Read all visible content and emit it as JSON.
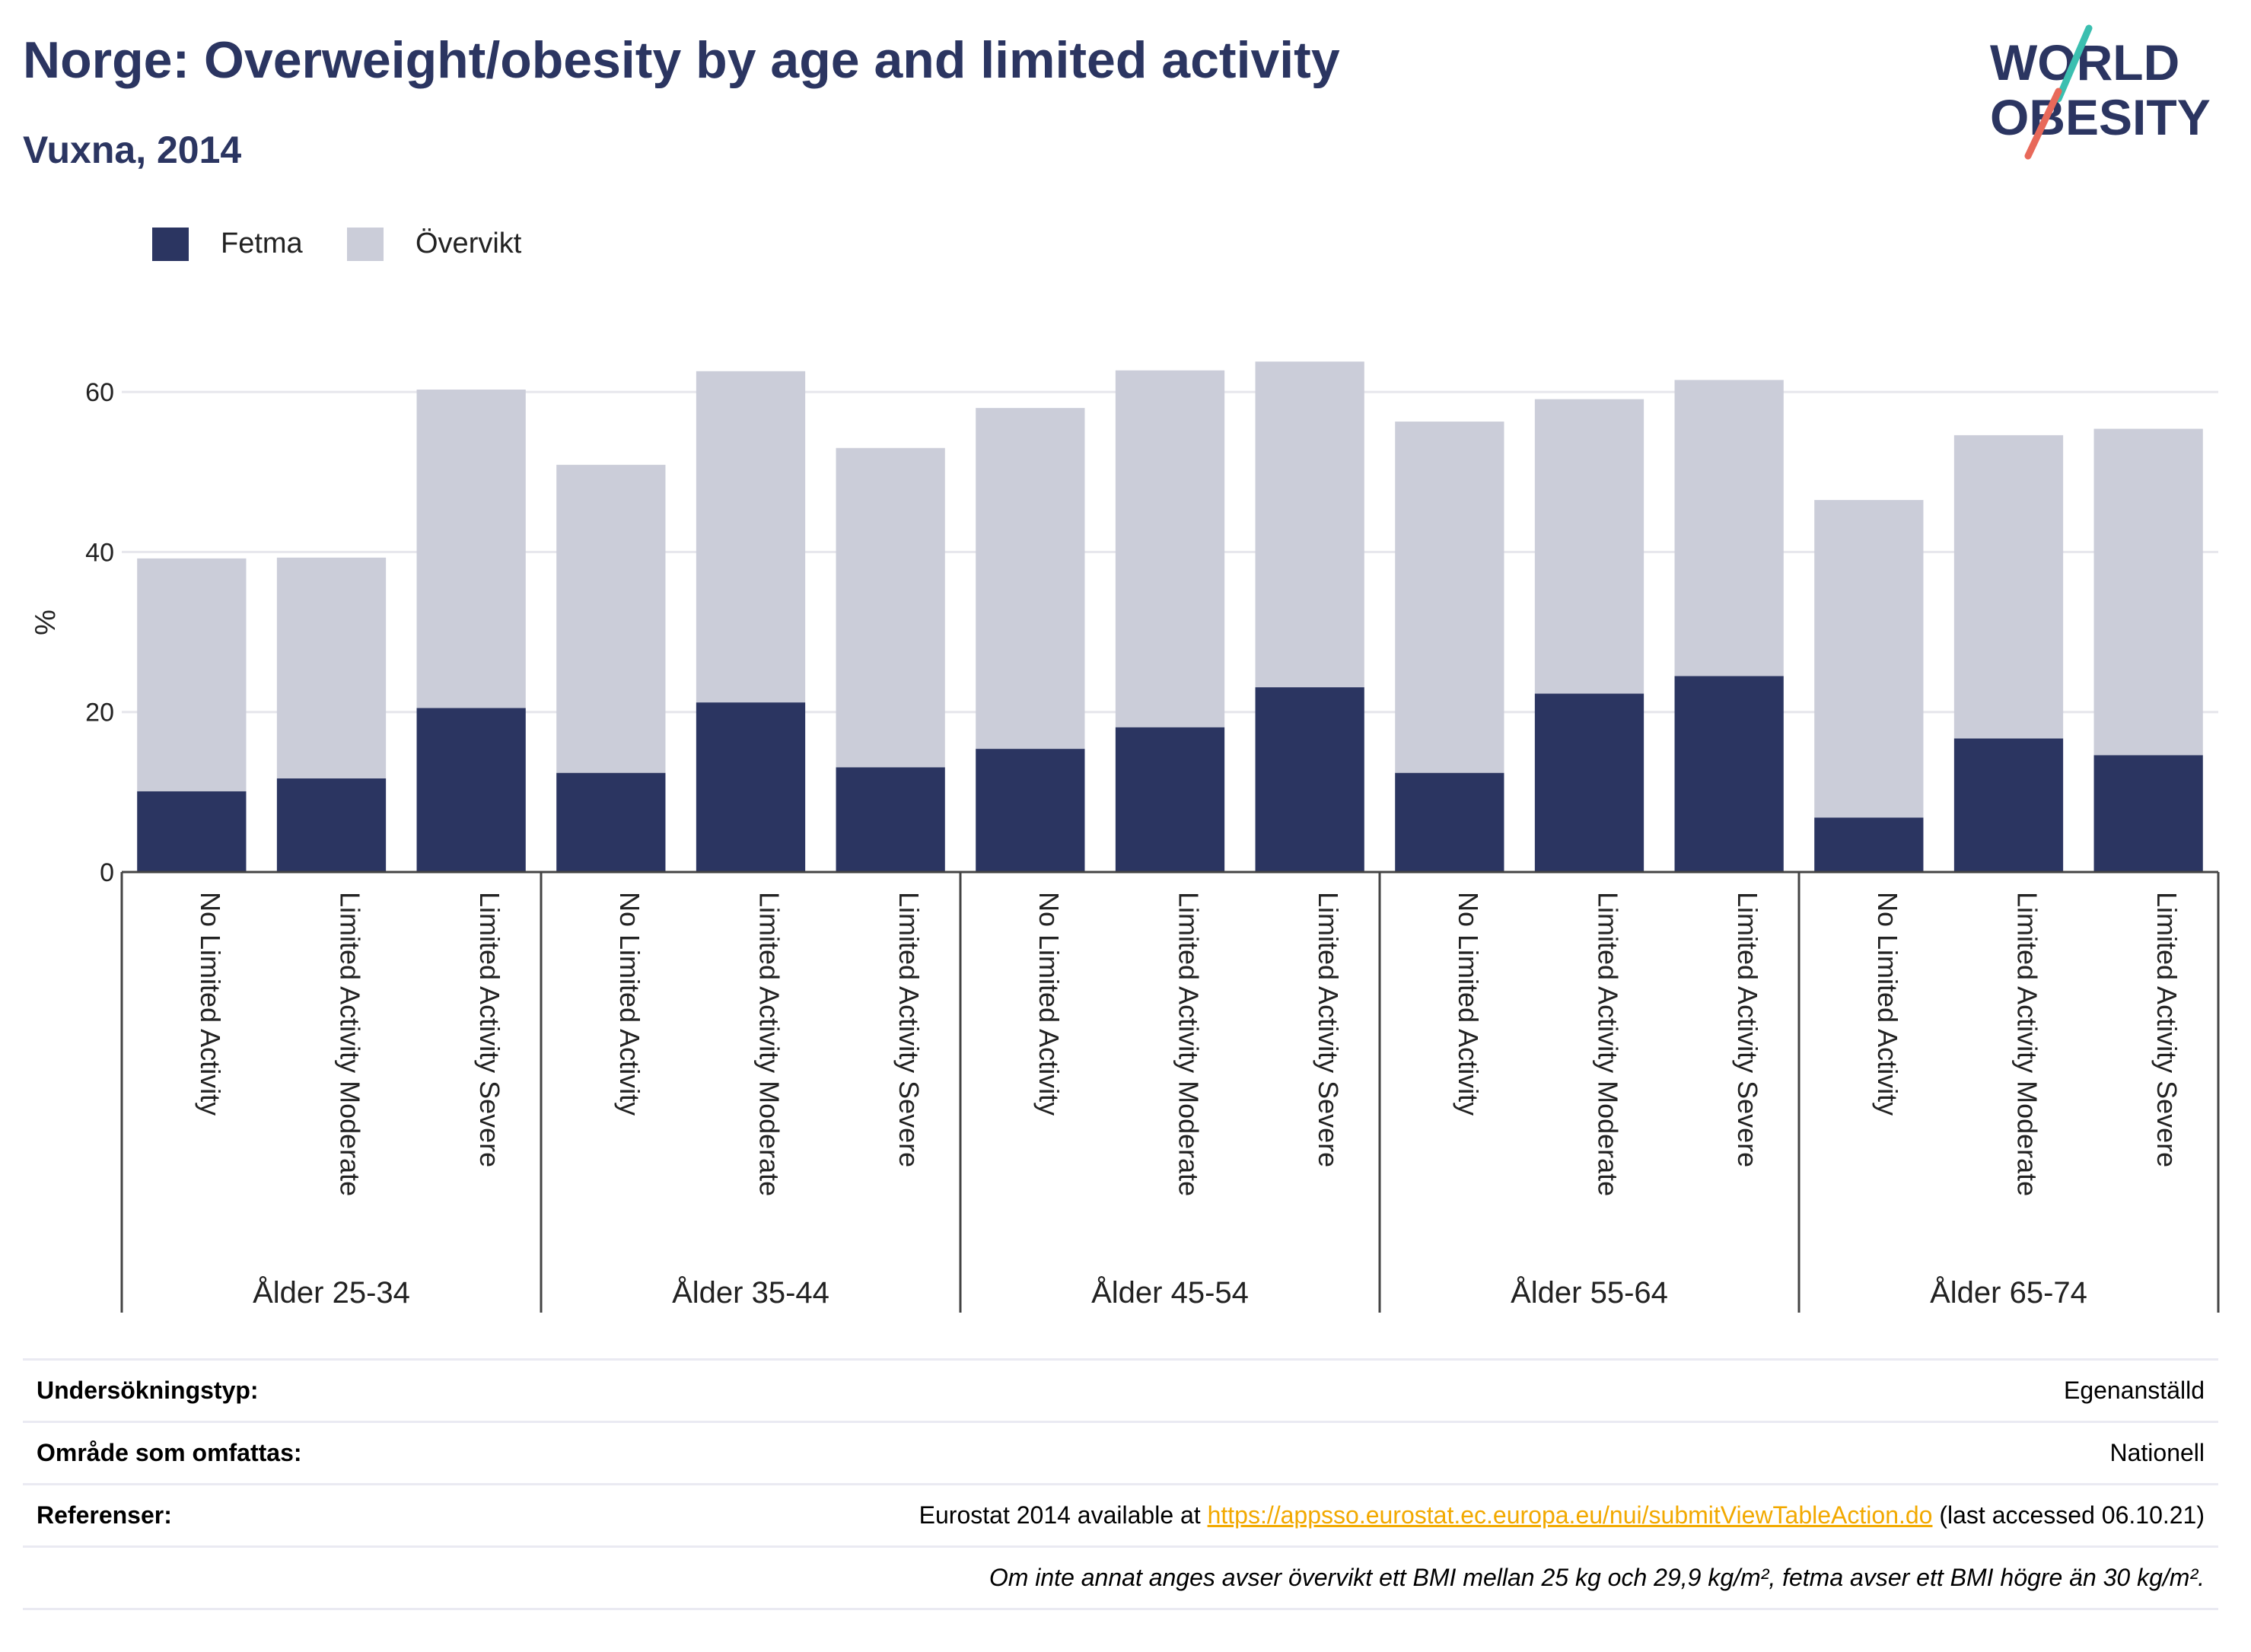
{
  "title": "Norge: Overweight/obesity by age and limited activity",
  "subtitle": "Vuxna, 2014",
  "logo": {
    "line1": "WORLD",
    "line2": "OBESITY"
  },
  "colors": {
    "title": "#2b3561",
    "fetma": "#2b3561",
    "overvikt": "#cbcdd9",
    "link": "#f2a900",
    "logo_slash_teal": "#3bbfb0",
    "logo_slash_red": "#e8695a"
  },
  "legend": [
    {
      "label": "Fetma",
      "color": "#2b3561"
    },
    {
      "label": "Övervikt",
      "color": "#cbcdd9"
    }
  ],
  "chart_data": {
    "type": "bar",
    "stacked": true,
    "ylabel": "%",
    "xlabel": "",
    "ylim": [
      0,
      70
    ],
    "yticks": [
      0,
      20,
      40,
      60
    ],
    "grid": true,
    "legend_position": "top-left",
    "groups": [
      {
        "label": "Ålder 25-34",
        "categories": [
          "No Limited Activity",
          "Limited Activity Moderate",
          "Limited Activity Severe"
        ]
      },
      {
        "label": "Ålder 35-44",
        "categories": [
          "No Limited Activity",
          "Limited Activity Moderate",
          "Limited Activity Severe"
        ]
      },
      {
        "label": "Ålder 45-54",
        "categories": [
          "No Limited Activity",
          "Limited Activity Moderate",
          "Limited Activity Severe"
        ]
      },
      {
        "label": "Ålder 55-64",
        "categories": [
          "No Limited Activity",
          "Limited Activity Moderate",
          "Limited Activity Severe"
        ]
      },
      {
        "label": "Ålder 65-74",
        "categories": [
          "No Limited Activity",
          "Limited Activity Moderate",
          "Limited Activity Severe"
        ]
      }
    ],
    "series": [
      {
        "name": "Fetma",
        "color": "#2b3561",
        "values": [
          10.1,
          11.7,
          20.5,
          12.4,
          21.2,
          13.1,
          15.4,
          18.1,
          23.1,
          12.4,
          22.3,
          24.5,
          6.8,
          16.7,
          14.6
        ]
      },
      {
        "name": "Övervikt",
        "color": "#cbcdd9",
        "values": [
          29.1,
          27.6,
          39.8,
          38.5,
          41.4,
          39.9,
          42.6,
          44.6,
          40.7,
          43.9,
          36.8,
          37.0,
          39.7,
          37.9,
          40.8
        ]
      }
    ]
  },
  "info": {
    "survey_label": "Undersökningstyp:",
    "survey_value": "Egenanställd",
    "area_label": "Område som omfattas:",
    "area_value": "Nationell",
    "ref_label": "Referenser:",
    "ref_prefix": "Eurostat 2014 available at ",
    "ref_link": "https://appsso.eurostat.ec.europa.eu/nui/submitViewTableAction.do",
    "ref_suffix": " (last accessed 06.10.21)",
    "note": "Om inte annat anges avser övervikt ett BMI mellan 25 kg och 29,9 kg/m², fetma avser ett BMI högre än 30 kg/m²."
  }
}
